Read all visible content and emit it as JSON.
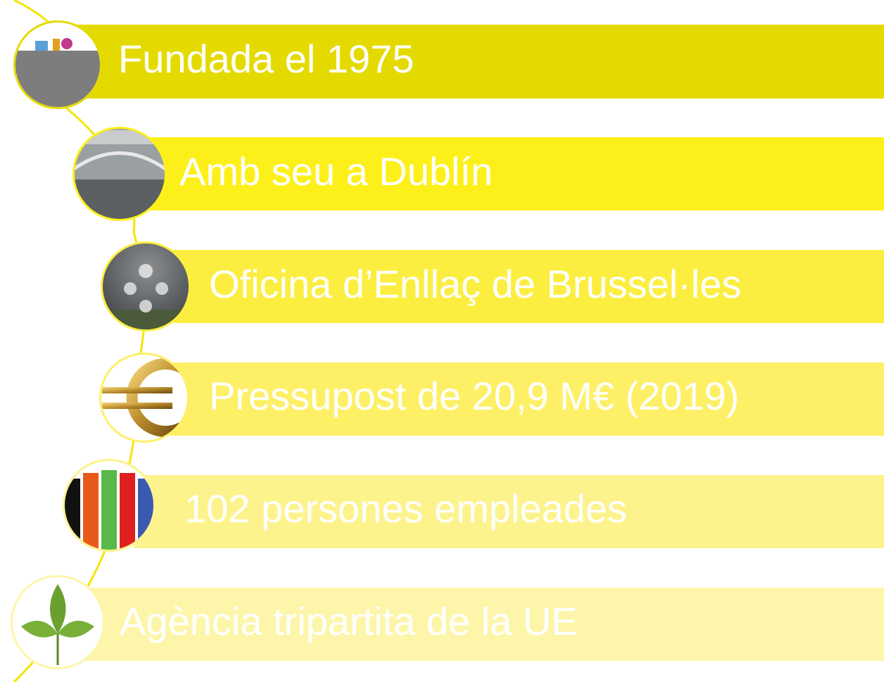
{
  "items": [
    {
      "label": "Fundada el 1975"
    },
    {
      "label": "Amb seu a Dublín"
    },
    {
      "label": "Oficina d’Enllaç de Brussel·les"
    },
    {
      "label": "Pressupost de 20,9 M€ (2019)"
    },
    {
      "label": "102 persones empleades"
    },
    {
      "label": "Agència tripartita de la UE"
    }
  ]
}
